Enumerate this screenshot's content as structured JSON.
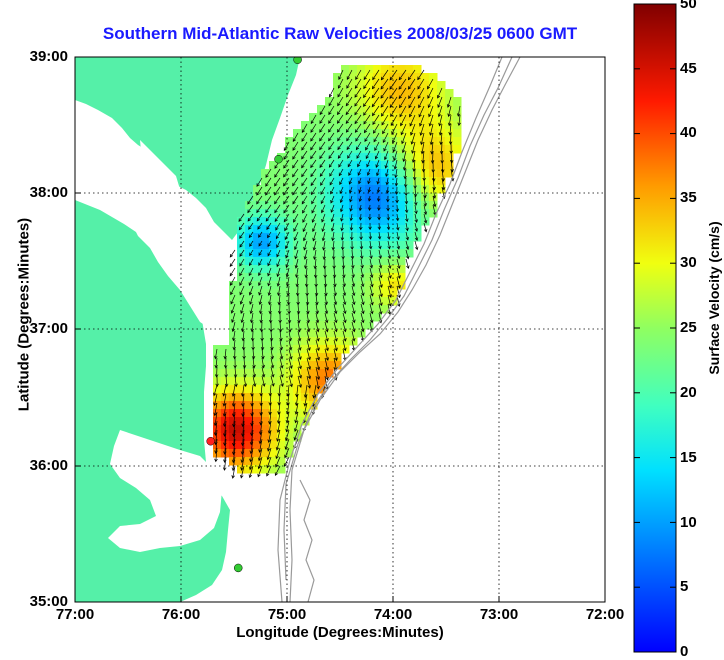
{
  "title": "Southern Mid-Atlantic Raw Velocities 2008/03/25 0600 GMT",
  "xlabel": "Longitude (Degrees:Minutes)",
  "ylabel": "Latitude (Degrees:Minutes)",
  "colorbar": {
    "label": "Surface Velocity (cm/s)",
    "ticks": [
      "0",
      "5",
      "10",
      "15",
      "20",
      "25",
      "30",
      "35",
      "40",
      "45",
      "50"
    ],
    "range": [
      0,
      50
    ],
    "colormap": "jet"
  },
  "map": {
    "x_ticks": [
      "77:00",
      "76:00",
      "75:00",
      "74:00",
      "73:00",
      "72:00"
    ],
    "y_ticks": [
      "39:00",
      "38:00",
      "37:00",
      "36:00",
      "35:00"
    ],
    "lon_range": [
      -77,
      -72
    ],
    "lat_range": [
      35,
      39
    ],
    "grid": true,
    "colors": {
      "land": "#55f0a8",
      "water": "#ffffff",
      "bathymetry": "#9a9a9a",
      "title": "#1a1aff"
    }
  },
  "stations": [
    {
      "lon": -74.9,
      "lat": 38.98,
      "color": "#33cc33"
    },
    {
      "lon": -75.08,
      "lat": 38.25,
      "color": "#33cc33"
    },
    {
      "lon": -75.72,
      "lat": 36.18,
      "color": "#ff2020"
    },
    {
      "lon": -75.46,
      "lat": 35.25,
      "color": "#33cc33"
    }
  ]
}
